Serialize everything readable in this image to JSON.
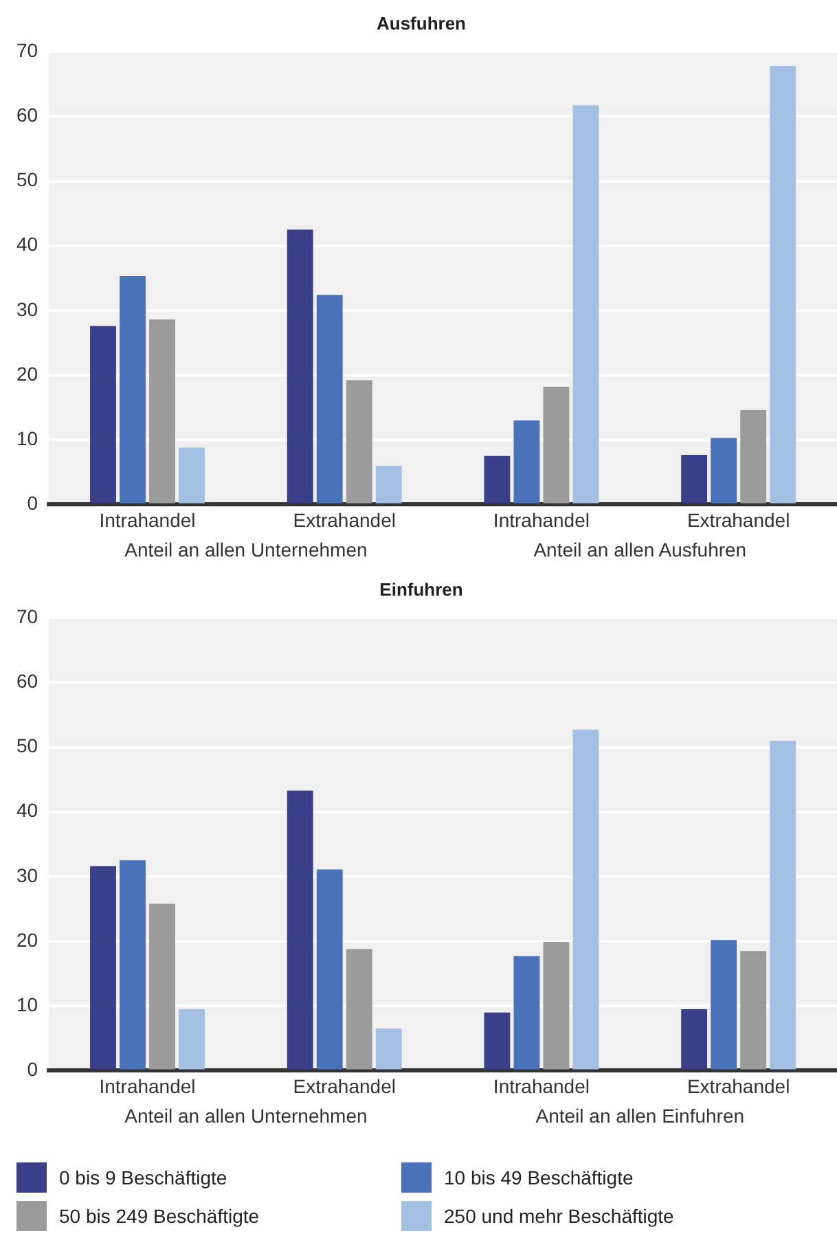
{
  "chart_data": [
    {
      "type": "bar",
      "title": "Ausfuhren",
      "categories": [
        "Intrahandel",
        "Extrahandel",
        "Intrahandel",
        "Extrahandel"
      ],
      "ylim": [
        0,
        70
      ],
      "yticks": [
        0,
        10,
        20,
        30,
        40,
        50,
        60,
        70
      ],
      "grid": "y",
      "legend": false,
      "annotations": [
        "Anteil an allen Unternehmen",
        "Anteil an allen Ausfuhren"
      ],
      "series": [
        {
          "color": "#3a3f8a",
          "values": [
            27.6,
            42.5,
            7.5,
            7.7
          ]
        },
        {
          "color": "#4a72b8",
          "values": [
            35.3,
            32.4,
            13.0,
            10.3
          ]
        },
        {
          "color": "#9b9b9b",
          "values": [
            28.6,
            19.2,
            18.2,
            14.6
          ]
        },
        {
          "color": "#a2c0e4",
          "values": [
            8.8,
            6.0,
            61.7,
            67.8
          ]
        }
      ]
    },
    {
      "type": "bar",
      "title": "Einfuhren",
      "categories": [
        "Intrahandel",
        "Extrahandel",
        "Intrahandel",
        "Extrahandel"
      ],
      "ylim": [
        0,
        70
      ],
      "yticks": [
        0,
        10,
        20,
        30,
        40,
        50,
        60,
        70
      ],
      "grid": "y",
      "legend": "bottom",
      "annotations": [
        "Anteil an allen Unternehmen",
        "Anteil an allen Einfuhren"
      ],
      "series": [
        {
          "name": "0 bis 9 Beschäftigte",
          "color": "#3a3f8a",
          "values": [
            31.6,
            43.3,
            9.0,
            9.5
          ]
        },
        {
          "name": "10 bis 49 Beschäftigte",
          "color": "#4a72b8",
          "values": [
            32.5,
            31.1,
            17.7,
            20.2
          ]
        },
        {
          "name": "50 bis 249 Beschäftigte",
          "color": "#9b9b9b",
          "values": [
            25.8,
            18.8,
            19.9,
            18.5
          ]
        },
        {
          "name": "250 und mehr Beschäftigte",
          "color": "#a2c0e4",
          "values": [
            9.5,
            6.5,
            52.7,
            51.0
          ]
        }
      ]
    }
  ]
}
